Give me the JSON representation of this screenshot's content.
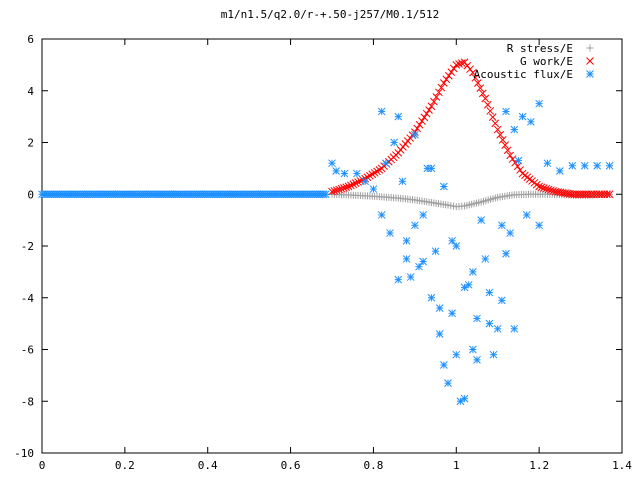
{
  "chart_data": {
    "type": "scatter",
    "title": "m1/n1.5/q2.0/r-+.50-j257/M0.1/512",
    "xlabel": "",
    "ylabel": "",
    "xlim": [
      0,
      1.4
    ],
    "ylim": [
      -10,
      6
    ],
    "x_ticks": [
      "0",
      "0.2",
      "0.4",
      "0.6",
      "0.8",
      "1",
      "1.2",
      "1.4"
    ],
    "y_ticks": [
      "6",
      "4",
      "2",
      "0",
      "-2",
      "-4",
      "-6",
      "-8",
      "-10"
    ],
    "legend_position": "top-right",
    "grid": false,
    "series": [
      {
        "name": "R stress/E",
        "marker": "+",
        "color": "#a0a0a0",
        "x": [
          0.7,
          0.74,
          0.78,
          0.82,
          0.86,
          0.9,
          0.94,
          0.98,
          1.0,
          1.02,
          1.06,
          1.1,
          1.14,
          1.18,
          1.22,
          1.26,
          1.3,
          1.34,
          1.37
        ],
        "y": [
          0.0,
          -0.03,
          -0.06,
          -0.1,
          -0.15,
          -0.22,
          -0.32,
          -0.42,
          -0.48,
          -0.45,
          -0.3,
          -0.12,
          -0.02,
          0.0,
          0.0,
          -0.02,
          -0.05,
          -0.02,
          0.0
        ]
      },
      {
        "name": "G work/E",
        "marker": "x",
        "color": "#ff0000",
        "x": [
          0.7,
          0.74,
          0.78,
          0.82,
          0.86,
          0.9,
          0.94,
          0.97,
          1.0,
          1.02,
          1.04,
          1.07,
          1.1,
          1.13,
          1.16,
          1.2,
          1.24,
          1.28,
          1.32,
          1.37
        ],
        "y": [
          0.1,
          0.3,
          0.6,
          1.0,
          1.6,
          2.4,
          3.4,
          4.3,
          5.0,
          5.1,
          4.7,
          3.7,
          2.5,
          1.5,
          0.8,
          0.3,
          0.1,
          0.0,
          0.0,
          0.0
        ]
      },
      {
        "name": "Acoustic flux/E",
        "marker": "*",
        "color": "#1e90ff",
        "baseline": {
          "x": [
            0.0,
            0.69
          ],
          "y": 0.0
        },
        "x": [
          0.7,
          0.71,
          0.73,
          0.76,
          0.78,
          0.8,
          0.82,
          0.83,
          0.84,
          0.85,
          0.86,
          0.87,
          0.88,
          0.89,
          0.9,
          0.91,
          0.92,
          0.93,
          0.94,
          0.95,
          0.96,
          0.97,
          0.98,
          0.99,
          1.0,
          1.01,
          1.02,
          1.03,
          1.04,
          1.05,
          1.06,
          1.07,
          1.08,
          1.09,
          1.1,
          1.11,
          1.12,
          1.13,
          1.14,
          1.15,
          1.16,
          1.18,
          1.2,
          1.22,
          1.25,
          1.28,
          1.31,
          1.34,
          1.37,
          0.82,
          0.86,
          0.9,
          0.94,
          0.97,
          0.99,
          1.02,
          1.05,
          1.08,
          1.11,
          1.14,
          0.88,
          0.92,
          0.96,
          1.0,
          1.04,
          1.12,
          1.17,
          1.2
        ],
        "y": [
          1.2,
          0.9,
          0.8,
          0.8,
          0.5,
          0.2,
          -0.8,
          1.2,
          -1.5,
          2.0,
          -3.3,
          0.5,
          -2.5,
          -3.2,
          -1.2,
          -2.8,
          -0.8,
          1.0,
          -4.0,
          -2.2,
          -5.4,
          -6.6,
          -7.3,
          -4.6,
          -6.2,
          -8.0,
          -7.9,
          -3.5,
          -6.0,
          -4.8,
          -1.0,
          -2.5,
          -3.8,
          -6.2,
          -5.2,
          -4.1,
          -2.3,
          -1.5,
          2.5,
          1.3,
          3.0,
          2.8,
          3.5,
          1.2,
          0.9,
          1.1,
          1.1,
          1.1,
          1.1,
          3.2,
          3.0,
          2.3,
          1.0,
          0.3,
          -1.8,
          -3.6,
          -6.4,
          -5.0,
          -1.2,
          -5.2,
          -1.8,
          -2.6,
          -4.4,
          -2.0,
          -3.0,
          3.2,
          -0.8,
          -1.2
        ]
      }
    ]
  }
}
